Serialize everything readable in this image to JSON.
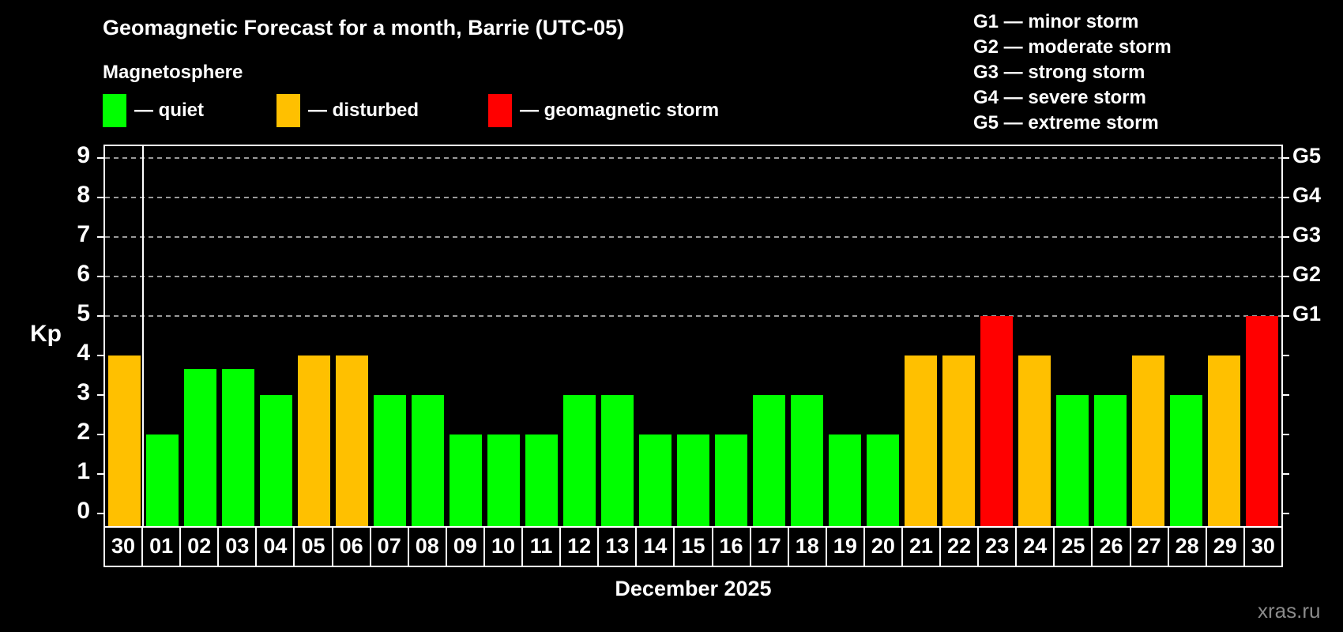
{
  "header": {
    "title": "Geomagnetic Forecast for a month, Barrie (UTC-05)",
    "subtitle": "Magnetosphere"
  },
  "legend": {
    "items": [
      {
        "key": "quiet",
        "label": "— quiet",
        "color": "#00ff00"
      },
      {
        "key": "disturbed",
        "label": "— disturbed",
        "color": "#ffc000"
      },
      {
        "key": "storm",
        "label": "— geomagnetic storm",
        "color": "#ff0000"
      }
    ]
  },
  "g_scale_legend": {
    "lines": [
      "G1 — minor storm",
      "G2 — moderate storm",
      "G3 — strong storm",
      "G4 — severe storm",
      "G5 — extreme storm"
    ]
  },
  "axis": {
    "y_label": "Kp",
    "y_ticks": [
      "0",
      "1",
      "2",
      "3",
      "4",
      "5",
      "6",
      "7",
      "8",
      "9"
    ],
    "right_labels": [
      {
        "kp": 5,
        "label": "G1"
      },
      {
        "kp": 6,
        "label": "G2"
      },
      {
        "kp": 7,
        "label": "G3"
      },
      {
        "kp": 8,
        "label": "G4"
      },
      {
        "kp": 9,
        "label": "G5"
      }
    ]
  },
  "x_title": "December 2025",
  "watermark": "xras.ru",
  "chart_data": {
    "type": "bar",
    "title": "Geomagnetic Forecast for a month, Barrie (UTC-05)",
    "xlabel": "December 2025",
    "ylabel": "Kp",
    "ylim": [
      0,
      9.35
    ],
    "grid": "dashed horizontal at Kp 5-9",
    "legend_position": "top-left",
    "categories": [
      "30",
      "01",
      "02",
      "03",
      "04",
      "05",
      "06",
      "07",
      "08",
      "09",
      "10",
      "11",
      "12",
      "13",
      "14",
      "15",
      "16",
      "17",
      "18",
      "19",
      "20",
      "21",
      "22",
      "23",
      "24",
      "25",
      "26",
      "27",
      "28",
      "29",
      "30"
    ],
    "values": [
      4,
      2,
      3.67,
      3.67,
      3,
      4,
      4,
      3,
      3,
      2,
      2,
      2,
      3,
      3,
      2,
      2,
      2,
      3,
      3,
      2,
      2,
      4,
      4,
      5,
      4,
      3,
      3,
      4,
      3,
      4,
      5
    ],
    "statuses": [
      "disturbed",
      "quiet",
      "quiet",
      "quiet",
      "quiet",
      "disturbed",
      "disturbed",
      "quiet",
      "quiet",
      "quiet",
      "quiet",
      "quiet",
      "quiet",
      "quiet",
      "quiet",
      "quiet",
      "quiet",
      "quiet",
      "quiet",
      "quiet",
      "quiet",
      "disturbed",
      "disturbed",
      "storm",
      "disturbed",
      "quiet",
      "quiet",
      "disturbed",
      "quiet",
      "disturbed",
      "storm"
    ],
    "colors": {
      "quiet": "#00ff00",
      "disturbed": "#ffc000",
      "storm": "#ff0000"
    },
    "gridlines_kp": [
      5,
      6,
      7,
      8,
      9
    ],
    "month_separator_after_index": 0
  }
}
